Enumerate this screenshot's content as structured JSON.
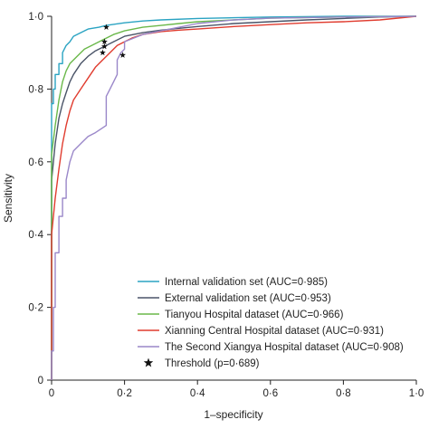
{
  "chart_data": {
    "type": "line",
    "title": "",
    "xlabel": "1–specificity",
    "ylabel": "Sensitivity",
    "xlim": [
      0,
      1
    ],
    "ylim": [
      0,
      1
    ],
    "x_ticks": [
      0,
      0.2,
      0.4,
      0.6,
      0.8,
      1.0
    ],
    "x_tick_labels": [
      "0",
      "0·2",
      "0·4",
      "0·6",
      "0·8",
      "1·0"
    ],
    "y_ticks": [
      0,
      0.2,
      0.4,
      0.6,
      0.8,
      1.0
    ],
    "y_tick_labels": [
      "0",
      "0·2",
      "0·4",
      "0·6",
      "0·8",
      "1·0"
    ],
    "grid": false,
    "legend_position": "bottom-right",
    "series": [
      {
        "name": "Internal validation set (AUC=0·985)",
        "color": "#2aa3c2",
        "x": [
          0,
          0,
          0.005,
          0.005,
          0.01,
          0.01,
          0.02,
          0.02,
          0.03,
          0.03,
          0.04,
          0.05,
          0.06,
          0.08,
          0.1,
          0.13,
          0.15,
          0.2,
          0.25,
          0.3,
          0.4,
          0.5,
          0.6,
          0.8,
          1.0
        ],
        "y": [
          0,
          0.76,
          0.76,
          0.8,
          0.8,
          0.84,
          0.84,
          0.87,
          0.87,
          0.9,
          0.92,
          0.93,
          0.945,
          0.955,
          0.965,
          0.97,
          0.975,
          0.982,
          0.987,
          0.99,
          0.994,
          0.996,
          0.998,
          1.0,
          1.0
        ]
      },
      {
        "name": "External validation set (AUC=0·953)",
        "color": "#4a5468",
        "x": [
          0,
          0,
          0.01,
          0.02,
          0.03,
          0.04,
          0.05,
          0.06,
          0.08,
          0.1,
          0.12,
          0.14,
          0.17,
          0.2,
          0.25,
          0.3,
          0.4,
          0.5,
          0.6,
          0.7,
          0.8,
          0.9,
          1.0
        ],
        "y": [
          0,
          0.55,
          0.65,
          0.72,
          0.76,
          0.79,
          0.82,
          0.84,
          0.87,
          0.89,
          0.905,
          0.915,
          0.93,
          0.945,
          0.955,
          0.962,
          0.972,
          0.98,
          0.985,
          0.99,
          0.994,
          0.998,
          1.0
        ]
      },
      {
        "name": "Tianyou Hospital dataset (AUC=0·966)",
        "color": "#6ab84a",
        "x": [
          0,
          0,
          0.01,
          0.02,
          0.03,
          0.04,
          0.05,
          0.07,
          0.09,
          0.11,
          0.14,
          0.17,
          0.2,
          0.25,
          0.3,
          0.35,
          0.4,
          0.5,
          0.6,
          0.8,
          1.0
        ],
        "y": [
          0,
          0.62,
          0.7,
          0.77,
          0.82,
          0.85,
          0.87,
          0.89,
          0.91,
          0.92,
          0.935,
          0.95,
          0.96,
          0.97,
          0.975,
          0.98,
          0.985,
          0.99,
          0.995,
          0.998,
          1.0
        ]
      },
      {
        "name": "Xianning Central Hospital dataset (AUC=0·931)",
        "color": "#e03c2f",
        "x": [
          0,
          0,
          0.01,
          0.02,
          0.03,
          0.04,
          0.05,
          0.06,
          0.08,
          0.1,
          0.12,
          0.14,
          0.16,
          0.18,
          0.2,
          0.22,
          0.25,
          0.3,
          0.35,
          0.4,
          0.5,
          0.6,
          0.7,
          0.8,
          0.9,
          1.0
        ],
        "y": [
          0,
          0.4,
          0.5,
          0.58,
          0.65,
          0.7,
          0.74,
          0.77,
          0.8,
          0.83,
          0.86,
          0.88,
          0.9,
          0.92,
          0.93,
          0.94,
          0.95,
          0.958,
          0.962,
          0.965,
          0.972,
          0.977,
          0.982,
          0.985,
          0.99,
          1.0
        ]
      },
      {
        "name": "The Second Xiangya Hospital dataset (AUC=0·908)",
        "color": "#9a87c9",
        "x": [
          0,
          0,
          0.005,
          0.005,
          0.01,
          0.01,
          0.02,
          0.02,
          0.03,
          0.03,
          0.04,
          0.04,
          0.05,
          0.06,
          0.08,
          0.1,
          0.12,
          0.15,
          0.15,
          0.16,
          0.17,
          0.18,
          0.18,
          0.19,
          0.2,
          0.2,
          0.25,
          0.3,
          0.35,
          0.4,
          0.5,
          0.6,
          0.8,
          1.0
        ],
        "y": [
          0,
          0.08,
          0.08,
          0.2,
          0.2,
          0.35,
          0.35,
          0.45,
          0.45,
          0.5,
          0.5,
          0.55,
          0.6,
          0.63,
          0.65,
          0.67,
          0.68,
          0.7,
          0.78,
          0.8,
          0.82,
          0.84,
          0.88,
          0.9,
          0.91,
          0.93,
          0.95,
          0.96,
          0.97,
          0.98,
          0.99,
          0.995,
          0.998,
          1.0
        ]
      }
    ],
    "markers": {
      "name": "Threshold (p=0·689)",
      "points": [
        {
          "x": 0.15,
          "y": 0.97
        },
        {
          "x": 0.145,
          "y": 0.93
        },
        {
          "x": 0.145,
          "y": 0.917
        },
        {
          "x": 0.14,
          "y": 0.9
        },
        {
          "x": 0.195,
          "y": 0.893
        }
      ]
    }
  }
}
